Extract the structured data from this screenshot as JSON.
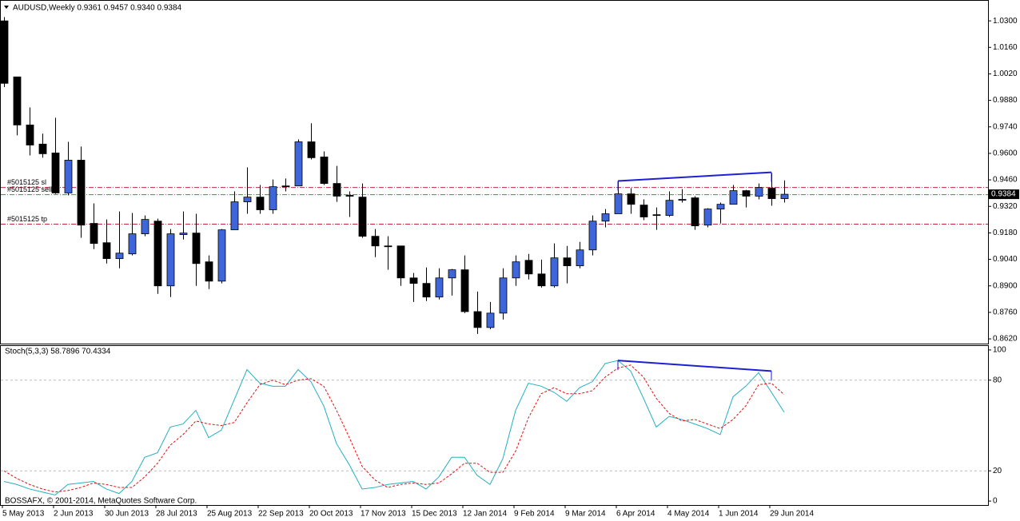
{
  "chart_data": [
    {
      "type": "candlestick",
      "title": "AUDUSD,Weekly  0.9361 0.9457 0.9340 0.9384",
      "categories": [
        "5 May 2013",
        null,
        null,
        null,
        "2 Jun 2013",
        null,
        null,
        null,
        "30 Jun 2013",
        null,
        null,
        null,
        "28 Jul 2013",
        null,
        null,
        null,
        "25 Aug 2013",
        null,
        null,
        null,
        "22 Sep 2013",
        null,
        null,
        null,
        "20 Oct 2013",
        null,
        null,
        null,
        "17 Nov 2013",
        null,
        null,
        null,
        "15 Dec 2013",
        null,
        null,
        null,
        "12 Jan 2014",
        null,
        null,
        null,
        "9 Feb 2014",
        null,
        null,
        null,
        "9 Mar 2014",
        null,
        null,
        null,
        "6 Apr 2014",
        null,
        null,
        null,
        "4 May 2014",
        null,
        null,
        null,
        "1 Jun 2014",
        null,
        null,
        null,
        "29 Jun 2014",
        null
      ],
      "open": [
        1.03,
        1.0004,
        0.975,
        0.9649,
        0.9602,
        0.9391,
        0.9564,
        0.923,
        0.9128,
        0.9044,
        0.9069,
        0.9175,
        0.9242,
        0.89,
        0.9171,
        0.9179,
        0.9027,
        0.8925,
        0.9196,
        0.9344,
        0.9369,
        0.9302,
        0.9428,
        0.9428,
        0.9661,
        0.9581,
        0.9441,
        0.9378,
        0.9369,
        0.9162,
        0.9111,
        0.9111,
        0.8942,
        0.8913,
        0.8841,
        0.8942,
        0.8985,
        0.8764,
        0.868,
        0.8756,
        0.8942,
        0.9035,
        0.8963,
        0.89,
        0.9048,
        0.9006,
        0.909,
        0.9242,
        0.9281,
        0.9386,
        0.9327,
        0.9276,
        0.9272,
        0.9352,
        0.9365,
        0.9221,
        0.9306,
        0.9331,
        0.9403,
        0.9374,
        0.9416,
        0.9361
      ],
      "high": [
        1.032,
        1.0004,
        0.9843,
        0.9704,
        0.9788,
        0.9661,
        0.9636,
        0.9336,
        0.9251,
        0.9293,
        0.9285,
        0.9272,
        0.9255,
        0.92,
        0.9293,
        0.9281,
        0.9061,
        0.92,
        0.9399,
        0.9526,
        0.9433,
        0.9462,
        0.9467,
        0.9674,
        0.9759,
        0.961,
        0.9534,
        0.9399,
        0.9441,
        0.92,
        0.9162,
        0.9111,
        0.8968,
        0.8997,
        0.8993,
        0.8989,
        0.9061,
        0.887,
        0.8815,
        0.8993,
        0.9061,
        0.9069,
        0.9039,
        0.9124,
        0.9111,
        0.9132,
        0.9272,
        0.9306,
        0.9454,
        0.9416,
        0.9357,
        0.9314,
        0.9399,
        0.9411,
        0.9374,
        0.931,
        0.934,
        0.9433,
        0.9407,
        0.9441,
        0.9496,
        0.9457
      ],
      "low": [
        0.995,
        0.9695,
        0.9589,
        0.9577,
        0.9386,
        0.9378,
        0.9154,
        0.9094,
        0.9018,
        0.8993,
        0.9061,
        0.9162,
        0.8858,
        0.8841,
        0.9145,
        0.89,
        0.8883,
        0.8913,
        0.9196,
        0.9281,
        0.9281,
        0.9281,
        0.9399,
        0.9428,
        0.9568,
        0.9433,
        0.9344,
        0.9264,
        0.9154,
        0.9052,
        0.8985,
        0.89,
        0.8815,
        0.882,
        0.8828,
        0.8849,
        0.8756,
        0.8646,
        0.8671,
        0.8722,
        0.89,
        0.8934,
        0.8891,
        0.8891,
        0.8913,
        0.8993,
        0.9061,
        0.9209,
        0.9281,
        0.9281,
        0.9247,
        0.9196,
        0.9264,
        0.934,
        0.9196,
        0.9209,
        0.923,
        0.9331,
        0.9314,
        0.9357,
        0.9323,
        0.934
      ],
      "close": [
        0.997,
        0.975,
        0.9644,
        0.9598,
        0.9391,
        0.9564,
        0.9221,
        0.9124,
        0.9044,
        0.9073,
        0.9175,
        0.9251,
        0.89,
        0.9175,
        0.9179,
        0.9018,
        0.8925,
        0.9196,
        0.9344,
        0.9369,
        0.9302,
        0.9424,
        0.9428,
        0.9661,
        0.9577,
        0.9441,
        0.9374,
        0.9374,
        0.9162,
        0.9111,
        0.9111,
        0.8942,
        0.8913,
        0.8841,
        0.8942,
        0.8985,
        0.8764,
        0.868,
        0.8756,
        0.8942,
        0.9027,
        0.8963,
        0.89,
        0.9048,
        0.9006,
        0.909,
        0.9242,
        0.9281,
        0.9386,
        0.9331,
        0.9264,
        0.9272,
        0.9352,
        0.9357,
        0.9217,
        0.9306,
        0.9331,
        0.9403,
        0.9374,
        0.942,
        0.9361,
        0.9384
      ],
      "up_color": "#3f66d9",
      "down_color": "#000000",
      "ylim": [
        0.8595,
        1.0406
      ],
      "yticks": [
        {
          "value": 1.03,
          "label": "1.0300"
        },
        {
          "value": 1.016,
          "label": "1.0160"
        },
        {
          "value": 1.002,
          "label": "1.0020"
        },
        {
          "value": 0.988,
          "label": "0.9880"
        },
        {
          "value": 0.974,
          "label": "0.9740"
        },
        {
          "value": 0.96,
          "label": "0.9600"
        },
        {
          "value": 0.946,
          "label": "0.9460"
        },
        {
          "value": 0.932,
          "label": "0.9320"
        },
        {
          "value": 0.918,
          "label": "0.9180"
        },
        {
          "value": 0.904,
          "label": "0.9040"
        },
        {
          "value": 0.89,
          "label": "0.8900"
        },
        {
          "value": 0.876,
          "label": "0.8760"
        },
        {
          "value": 0.862,
          "label": "0.8620"
        }
      ],
      "current_price": 0.9384,
      "levels": [
        {
          "label": "#5015125 sl",
          "value": 0.942,
          "color": "#c0283c"
        },
        {
          "label": "#5015125 sell",
          "value": 0.9382,
          "color": "#2aa32a"
        },
        {
          "label": "#5015125 tp",
          "value": 0.9226,
          "color": "#c0283c"
        }
      ],
      "trendline": {
        "x": [
          "6 Apr 2014",
          "29 Jun 2014"
        ],
        "values": [
          0.9454,
          0.95
        ],
        "color": "#1f1fd6"
      }
    },
    {
      "type": "line",
      "title": "Stoch(5,3,3) 58.7896 70.4334",
      "series": [
        {
          "color": "#22b0c0",
          "dash": false,
          "values": [
            13,
            11,
            8,
            6,
            4,
            11,
            12,
            13,
            8,
            5,
            13,
            29,
            32,
            49,
            51,
            60,
            42,
            47,
            67,
            87,
            78,
            76,
            76,
            87,
            79,
            63,
            38,
            24,
            8,
            9,
            11,
            12,
            13,
            8,
            16,
            29,
            29,
            17,
            11,
            28,
            60,
            78,
            76,
            72,
            66,
            75,
            79,
            91,
            93,
            86,
            68,
            49,
            56,
            54,
            51,
            48,
            44,
            69,
            76,
            85,
            72,
            58.7896
          ]
        },
        {
          "color": "#e01010",
          "dash": true,
          "values": [
            20,
            15,
            11,
            8,
            6,
            7,
            9,
            12,
            11,
            9,
            9,
            16,
            25,
            37,
            44,
            53,
            51,
            50,
            52,
            65,
            77,
            80,
            77,
            80,
            81,
            76,
            60,
            42,
            23,
            14,
            9,
            11,
            12,
            11,
            12,
            18,
            25,
            25,
            19,
            19,
            33,
            55,
            71,
            75,
            71,
            71,
            73,
            82,
            88,
            90,
            82,
            68,
            58,
            53,
            54,
            51,
            48,
            54,
            63,
            77,
            78,
            70.4334
          ]
        }
      ],
      "ylim": [
        -2.6,
        102.6
      ],
      "yticks": [
        100,
        80,
        20,
        0
      ],
      "levels": [
        80,
        20
      ],
      "trendline": {
        "x": [
          "6 Apr 2014",
          "29 Jun 2014"
        ],
        "values": [
          93,
          86
        ],
        "color": "#1f1fd6"
      },
      "footer": "BOSSAFX, © 2001-2014, MetaQuotes Software Corp."
    }
  ]
}
